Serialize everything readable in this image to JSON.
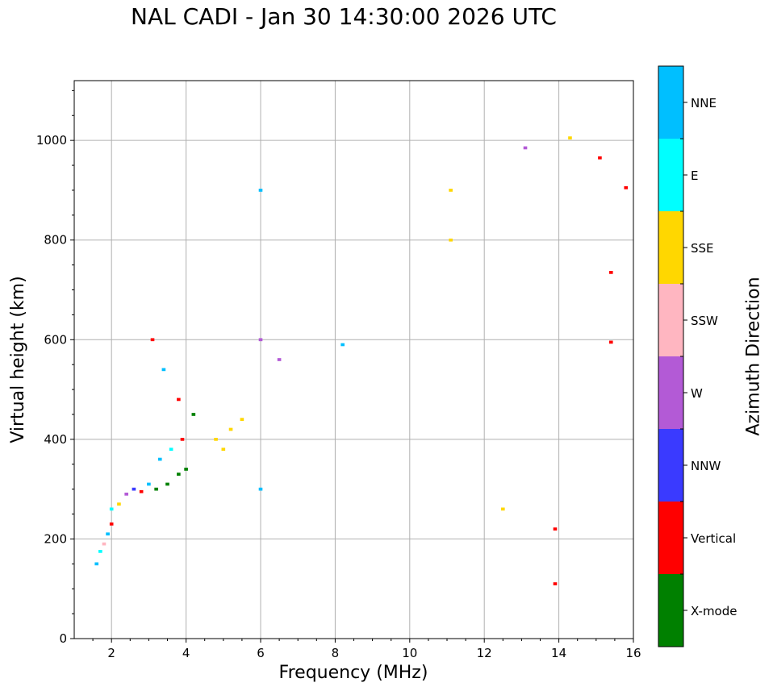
{
  "chart_data": {
    "type": "scatter",
    "title": "NAL CADI - Jan 30 14:30:00 2026 UTC",
    "xlabel": "Frequency (MHz)",
    "ylabel": "Virtual height (km)",
    "xlim": [
      1,
      16
    ],
    "ylim": [
      0,
      1120
    ],
    "xticks": [
      2,
      4,
      6,
      8,
      10,
      12,
      14,
      16
    ],
    "yticks": [
      0,
      200,
      400,
      600,
      800,
      1000
    ],
    "grid": true,
    "colorbar": {
      "label": "Azimuth Direction",
      "categories": [
        {
          "name": "X-mode",
          "color": "#008000"
        },
        {
          "name": "Vertical",
          "color": "#ff0000"
        },
        {
          "name": "NNW",
          "color": "#3a3aff"
        },
        {
          "name": "W",
          "color": "#b35ad6"
        },
        {
          "name": "SSW",
          "color": "#ffb6c1"
        },
        {
          "name": "SSE",
          "color": "#ffd700"
        },
        {
          "name": "E",
          "color": "#00ffff"
        },
        {
          "name": "NNE",
          "color": "#00bfff"
        }
      ]
    },
    "points": [
      {
        "f": 1.6,
        "h": 150,
        "c": "NNE"
      },
      {
        "f": 1.7,
        "h": 175,
        "c": "E"
      },
      {
        "f": 1.8,
        "h": 190,
        "c": "SSW"
      },
      {
        "f": 1.9,
        "h": 210,
        "c": "NNE"
      },
      {
        "f": 2.0,
        "h": 230,
        "c": "Vertical"
      },
      {
        "f": 2.0,
        "h": 260,
        "c": "E"
      },
      {
        "f": 2.2,
        "h": 270,
        "c": "SSE"
      },
      {
        "f": 2.4,
        "h": 290,
        "c": "W"
      },
      {
        "f": 2.6,
        "h": 300,
        "c": "NNW"
      },
      {
        "f": 2.8,
        "h": 295,
        "c": "Vertical"
      },
      {
        "f": 3.0,
        "h": 310,
        "c": "NNE"
      },
      {
        "f": 3.2,
        "h": 300,
        "c": "X-mode"
      },
      {
        "f": 3.5,
        "h": 310,
        "c": "X-mode"
      },
      {
        "f": 3.8,
        "h": 330,
        "c": "X-mode"
      },
      {
        "f": 4.0,
        "h": 340,
        "c": "X-mode"
      },
      {
        "f": 3.3,
        "h": 360,
        "c": "NNE"
      },
      {
        "f": 3.6,
        "h": 380,
        "c": "E"
      },
      {
        "f": 3.9,
        "h": 400,
        "c": "Vertical"
      },
      {
        "f": 3.1,
        "h": 600,
        "c": "Vertical"
      },
      {
        "f": 3.4,
        "h": 540,
        "c": "NNE"
      },
      {
        "f": 3.8,
        "h": 480,
        "c": "Vertical"
      },
      {
        "f": 4.2,
        "h": 450,
        "c": "X-mode"
      },
      {
        "f": 4.8,
        "h": 400,
        "c": "SSE"
      },
      {
        "f": 5.0,
        "h": 380,
        "c": "SSE"
      },
      {
        "f": 5.2,
        "h": 420,
        "c": "SSE"
      },
      {
        "f": 5.5,
        "h": 440,
        "c": "SSE"
      },
      {
        "f": 6.0,
        "h": 900,
        "c": "NNE"
      },
      {
        "f": 6.0,
        "h": 600,
        "c": "W"
      },
      {
        "f": 6.0,
        "h": 300,
        "c": "NNE"
      },
      {
        "f": 6.5,
        "h": 560,
        "c": "W"
      },
      {
        "f": 8.2,
        "h": 590,
        "c": "NNE"
      },
      {
        "f": 11.1,
        "h": 900,
        "c": "SSE"
      },
      {
        "f": 11.1,
        "h": 800,
        "c": "SSE"
      },
      {
        "f": 12.5,
        "h": 260,
        "c": "SSE"
      },
      {
        "f": 13.9,
        "h": 220,
        "c": "Vertical"
      },
      {
        "f": 13.9,
        "h": 110,
        "c": "Vertical"
      },
      {
        "f": 15.4,
        "h": 735,
        "c": "Vertical"
      },
      {
        "f": 15.4,
        "h": 595,
        "c": "Vertical"
      },
      {
        "f": 15.8,
        "h": 905,
        "c": "Vertical"
      },
      {
        "f": 15.1,
        "h": 965,
        "c": "Vertical"
      },
      {
        "f": 13.1,
        "h": 985,
        "c": "W"
      },
      {
        "f": 14.3,
        "h": 1005,
        "c": "SSE"
      }
    ]
  }
}
